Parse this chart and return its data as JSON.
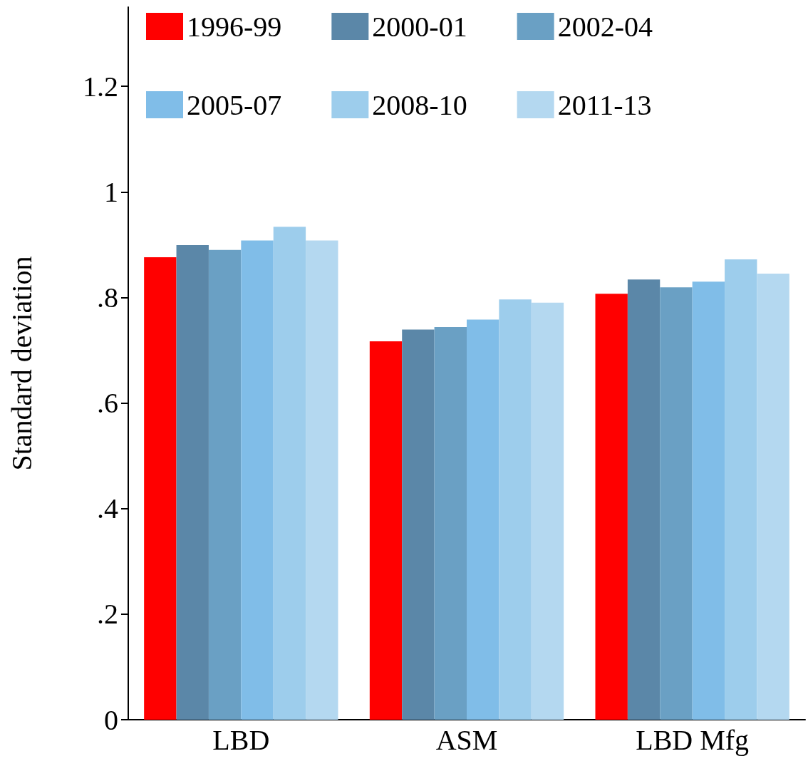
{
  "chart_data": {
    "type": "bar",
    "ylabel": "Standard deviation",
    "categories": [
      "LBD",
      "ASM",
      "LBD Mfg"
    ],
    "series": [
      {
        "name": "1996-99",
        "color": "#ff0000",
        "values": [
          0.876,
          0.717,
          0.807
        ]
      },
      {
        "name": "2000-01",
        "color": "#5b87a8",
        "values": [
          0.899,
          0.739,
          0.834
        ]
      },
      {
        "name": "2002-04",
        "color": "#6aa0c4",
        "values": [
          0.89,
          0.744,
          0.819
        ]
      },
      {
        "name": "2005-07",
        "color": "#80bde8",
        "values": [
          0.908,
          0.758,
          0.83
        ]
      },
      {
        "name": "2008-10",
        "color": "#9dcdec",
        "values": [
          0.934,
          0.796,
          0.872
        ]
      },
      {
        "name": "2011-13",
        "color": "#b4d8f0",
        "values": [
          0.908,
          0.79,
          0.845
        ]
      }
    ],
    "ylim": [
      0,
      1.35
    ],
    "yticks": [
      0,
      {
        "value": 0.2,
        "label": ".2"
      },
      {
        "value": 0.4,
        "label": ".4"
      },
      {
        "value": 0.6,
        "label": ".6"
      },
      {
        "value": 0.8,
        "label": ".8"
      },
      1,
      1.2
    ],
    "grid": false,
    "legend": "top"
  }
}
